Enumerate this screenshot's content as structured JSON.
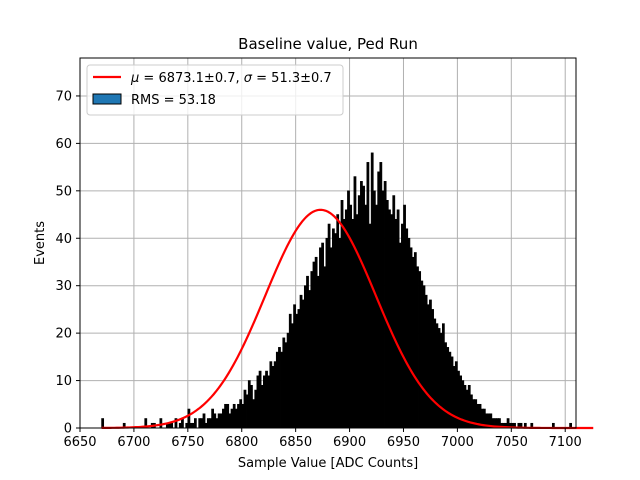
{
  "chart_data": {
    "type": "bar",
    "title": "Baseline value, Ped Run",
    "xlabel": "Sample Value [ADC Counts]",
    "ylabel": "Events",
    "xlim": [
      6650,
      7110
    ],
    "ylim": [
      0,
      78
    ],
    "xticks": [
      6650,
      6700,
      6750,
      6800,
      6850,
      6900,
      6950,
      7000,
      7050,
      7100
    ],
    "yticks": [
      0,
      10,
      20,
      30,
      40,
      50,
      60,
      70
    ],
    "grid": true,
    "legend_position": "top-left",
    "colors": {
      "bars": "#000000",
      "fit": "#ff0000",
      "rms_patch": "#1f77b4",
      "grid": "#b0b0b0"
    },
    "fit": {
      "mu": 6873.1,
      "sigma": 51.3,
      "amplitude": 46
    },
    "legend": {
      "fit_label_mu": "μ",
      "fit_label_rest": " = 6873.1±0.7, ",
      "fit_label_sigma": "σ",
      "fit_label_rest2": " = 51.3±0.7",
      "rms_label": "RMS = 53.18"
    },
    "histogram": {
      "bin_start": 6670,
      "bin_width": 2,
      "counts": [
        2,
        0,
        0,
        0,
        0,
        0,
        0,
        0,
        0,
        0,
        1,
        0,
        0,
        0,
        0,
        0,
        0,
        0,
        0,
        0,
        2,
        0,
        0,
        1,
        1,
        0,
        0,
        2,
        0,
        0,
        1,
        1,
        1,
        0,
        2,
        0,
        1,
        2,
        0,
        1,
        4,
        1,
        1,
        2,
        0,
        2,
        2,
        3,
        1,
        2,
        2,
        4,
        3,
        2,
        3,
        3,
        4,
        5,
        5,
        3,
        4,
        5,
        4,
        5,
        6,
        5,
        8,
        7,
        10,
        9,
        6,
        8,
        11,
        12,
        9,
        11,
        12,
        11,
        14,
        13,
        14,
        16,
        17,
        16,
        19,
        18,
        20,
        24,
        22,
        26,
        24,
        25,
        28,
        27,
        30,
        32,
        29,
        33,
        35,
        36,
        32,
        38,
        39,
        34,
        40,
        43,
        38,
        42,
        41,
        45,
        40,
        48,
        44,
        46,
        50,
        47,
        44,
        53,
        45,
        49,
        52,
        51,
        47,
        56,
        43,
        58,
        50,
        47,
        54,
        56,
        50,
        52,
        48,
        46,
        45,
        49,
        44,
        46,
        39,
        43,
        47,
        42,
        40,
        38,
        36,
        37,
        34,
        33,
        31,
        30,
        28,
        26,
        27,
        25,
        23,
        22,
        21,
        20,
        22,
        18,
        17,
        16,
        15,
        13,
        14,
        12,
        11,
        10,
        9,
        8,
        9,
        7,
        6,
        6,
        5,
        5,
        4,
        4,
        3,
        3,
        3,
        2,
        2,
        2,
        2,
        1,
        1,
        1,
        2,
        1,
        1,
        1,
        0,
        1,
        1,
        0,
        1,
        0,
        0,
        1,
        0,
        0,
        0,
        0,
        0,
        0,
        0,
        0,
        0,
        1,
        0,
        0,
        0,
        0,
        0,
        0,
        0,
        1,
        0,
        0,
        0,
        0,
        0,
        0,
        0,
        0,
        0,
        0
      ]
    }
  }
}
